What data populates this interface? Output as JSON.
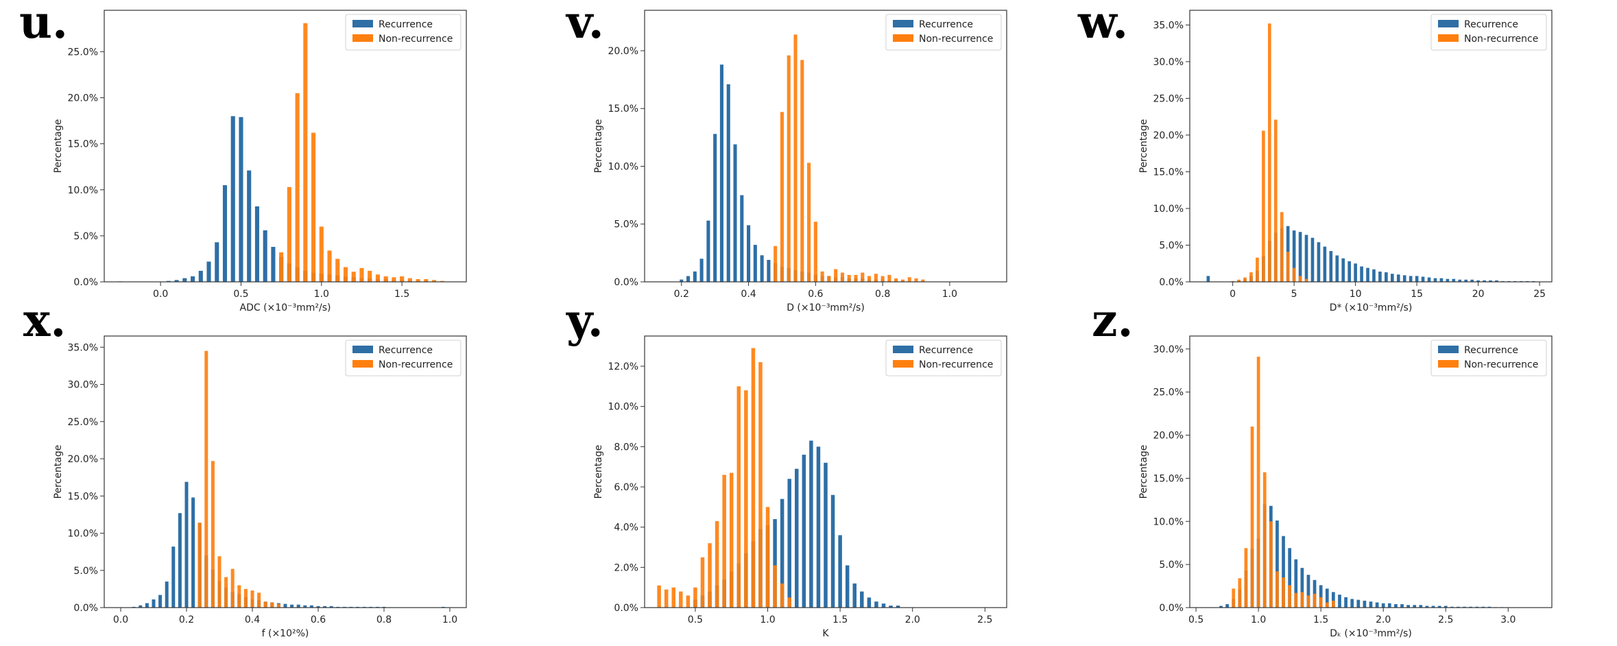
{
  "colors": {
    "recurrence": "#2e6fa6",
    "non_recurrence": "#ff7f0e",
    "overlap": "#6e6e6e"
  },
  "chart_data": [
    {
      "type": "bar",
      "letter": "u.",
      "xlabel": "ADC (×10⁻³mm²/s)",
      "ylabel": "Percentage",
      "xlim": [
        -0.35,
        1.9
      ],
      "ylim": [
        0,
        29.5
      ],
      "xticks": [
        0.0,
        0.5,
        1.0,
        1.5
      ],
      "xtick_labels": [
        "0.0",
        "0.5",
        "1.0",
        "1.5"
      ],
      "yticks": [
        0,
        5,
        10,
        15,
        20,
        25
      ],
      "ytick_labels": [
        "0.0%",
        "5.0%",
        "10.0%",
        "15.0%",
        "20.0%",
        "25.0%"
      ],
      "legend": [
        "Recurrence",
        "Non-recurrence"
      ],
      "legend_position": "top-right",
      "bin_width": 0.05,
      "series": [
        {
          "name": "Recurrence",
          "x": [
            -0.25,
            0.05,
            0.1,
            0.15,
            0.2,
            0.25,
            0.3,
            0.35,
            0.4,
            0.45,
            0.5,
            0.55,
            0.6,
            0.65,
            0.7,
            0.75,
            0.8,
            0.85,
            0.9,
            0.95,
            1.0,
            1.05,
            1.1,
            1.15,
            1.2,
            1.25,
            1.3,
            1.35,
            1.4,
            1.45,
            1.5,
            1.55,
            1.6,
            1.65,
            1.7,
            1.75
          ],
          "values": [
            0.05,
            0.1,
            0.2,
            0.4,
            0.6,
            1.2,
            2.2,
            4.3,
            10.5,
            18.0,
            17.9,
            12.1,
            8.2,
            5.6,
            3.8,
            2.7,
            2.0,
            1.6,
            1.2,
            1.0,
            0.9,
            0.8,
            0.7,
            0.6,
            0.5,
            0.4,
            0.4,
            0.3,
            0.3,
            0.2,
            0.2,
            0.15,
            0.1,
            0.1,
            0.05,
            0.05
          ]
        },
        {
          "name": "Non-recurrence",
          "x": [
            0.75,
            0.8,
            0.85,
            0.9,
            0.95,
            1.0,
            1.05,
            1.1,
            1.15,
            1.2,
            1.25,
            1.3,
            1.35,
            1.4,
            1.45,
            1.5,
            1.55,
            1.6,
            1.65,
            1.7,
            1.75
          ],
          "values": [
            3.2,
            10.3,
            20.5,
            28.1,
            16.2,
            6.0,
            3.4,
            2.5,
            1.6,
            1.1,
            1.5,
            1.2,
            0.8,
            0.6,
            0.5,
            0.6,
            0.4,
            0.3,
            0.3,
            0.2,
            0.1
          ]
        }
      ]
    },
    {
      "type": "bar",
      "letter": "v.",
      "xlabel": "D (×10⁻³mm²/s)",
      "ylabel": "Percentage",
      "xlim": [
        0.09,
        1.17
      ],
      "ylim": [
        0,
        23.5
      ],
      "xticks": [
        0.2,
        0.4,
        0.6,
        0.8,
        1.0
      ],
      "xtick_labels": [
        "0.2",
        "0.4",
        "0.6",
        "0.8",
        "1.0"
      ],
      "yticks": [
        0,
        5,
        10,
        15,
        20
      ],
      "ytick_labels": [
        "0.0%",
        "5.0%",
        "10.0%",
        "15.0%",
        "20.0%"
      ],
      "legend": [
        "Recurrence",
        "Non-recurrence"
      ],
      "legend_position": "top-right",
      "bin_width": 0.02,
      "series": [
        {
          "name": "Recurrence",
          "x": [
            0.2,
            0.22,
            0.24,
            0.26,
            0.28,
            0.3,
            0.32,
            0.34,
            0.36,
            0.38,
            0.4,
            0.42,
            0.44,
            0.46,
            0.48,
            0.5,
            0.52,
            0.54,
            0.56,
            0.58,
            0.6,
            0.62,
            0.64,
            0.66,
            0.68,
            0.7,
            0.72,
            0.74,
            0.76,
            0.78,
            0.8,
            0.82,
            0.84,
            0.86
          ],
          "values": [
            0.2,
            0.5,
            0.9,
            2.0,
            5.3,
            12.8,
            18.8,
            17.1,
            11.9,
            7.5,
            4.9,
            3.2,
            2.3,
            1.9,
            1.6,
            1.3,
            1.2,
            1.0,
            0.9,
            0.8,
            0.6,
            0.5,
            0.5,
            0.4,
            0.4,
            0.3,
            0.3,
            0.3,
            0.2,
            0.2,
            0.2,
            0.1,
            0.1,
            0.1
          ]
        },
        {
          "name": "Non-recurrence",
          "x": [
            0.48,
            0.5,
            0.52,
            0.54,
            0.56,
            0.58,
            0.6,
            0.62,
            0.64,
            0.66,
            0.68,
            0.7,
            0.72,
            0.74,
            0.76,
            0.78,
            0.8,
            0.82,
            0.84,
            0.86,
            0.88,
            0.9,
            0.92
          ],
          "values": [
            3.1,
            14.7,
            19.6,
            21.4,
            19.2,
            10.3,
            5.2,
            0.9,
            0.5,
            1.1,
            0.8,
            0.6,
            0.6,
            0.8,
            0.5,
            0.7,
            0.5,
            0.6,
            0.3,
            0.2,
            0.4,
            0.3,
            0.2
          ]
        }
      ]
    },
    {
      "type": "bar",
      "letter": "w.",
      "xlabel": "D* (×10⁻³mm²/s)",
      "ylabel": "Percentage",
      "xlim": [
        -3.5,
        26.0
      ],
      "ylim": [
        0,
        37.0
      ],
      "xticks": [
        0,
        5,
        10,
        15,
        20,
        25
      ],
      "xtick_labels": [
        "0",
        "5",
        "10",
        "15",
        "20",
        "25"
      ],
      "yticks": [
        0,
        5,
        10,
        15,
        20,
        25,
        30,
        35
      ],
      "ytick_labels": [
        "0.0%",
        "5.0%",
        "10.0%",
        "15.0%",
        "20.0%",
        "25.0%",
        "30.0%",
        "35.0%"
      ],
      "legend": [
        "Recurrence",
        "Non-recurrence"
      ],
      "legend_position": "top-right",
      "bin_width": 0.5,
      "series": [
        {
          "name": "Recurrence",
          "x": [
            -2.0,
            0.0,
            0.5,
            1.0,
            1.5,
            2.0,
            2.5,
            3.0,
            3.5,
            4.0,
            4.5,
            5.0,
            5.5,
            6.0,
            6.5,
            7.0,
            7.5,
            8.0,
            8.5,
            9.0,
            9.5,
            10.0,
            10.5,
            11.0,
            11.5,
            12.0,
            12.5,
            13.0,
            13.5,
            14.0,
            14.5,
            15.0,
            15.5,
            16.0,
            16.5,
            17.0,
            17.5,
            18.0,
            18.5,
            19.0,
            19.5,
            20.0,
            20.5,
            21.0,
            21.5,
            22.0,
            22.5,
            23.0,
            23.5,
            24.0,
            24.5
          ],
          "values": [
            0.8,
            0.1,
            0.2,
            0.4,
            0.8,
            1.5,
            3.5,
            5.6,
            6.7,
            7.3,
            7.6,
            7.0,
            6.8,
            6.4,
            6.0,
            5.4,
            4.8,
            4.2,
            3.6,
            3.2,
            2.8,
            2.5,
            2.1,
            1.9,
            1.7,
            1.4,
            1.3,
            1.1,
            1.0,
            0.9,
            0.8,
            0.8,
            0.7,
            0.6,
            0.5,
            0.5,
            0.4,
            0.4,
            0.3,
            0.3,
            0.3,
            0.2,
            0.2,
            0.2,
            0.2,
            0.1,
            0.1,
            0.1,
            0.1,
            0.1,
            0.1
          ]
        },
        {
          "name": "Non-recurrence",
          "x": [
            0.0,
            0.5,
            1.0,
            1.5,
            2.0,
            2.5,
            3.0,
            3.5,
            4.0,
            4.5,
            5.0,
            5.5,
            6.0
          ],
          "values": [
            0.1,
            0.3,
            0.6,
            1.3,
            3.3,
            20.6,
            35.2,
            22.1,
            9.5,
            4.1,
            1.9,
            0.8,
            0.4
          ]
        }
      ]
    },
    {
      "type": "bar",
      "letter": "x.",
      "xlabel": "f (×10²%)",
      "ylabel": "Percentage",
      "xlim": [
        -0.05,
        1.05
      ],
      "ylim": [
        0,
        36.5
      ],
      "xticks": [
        0.0,
        0.2,
        0.4,
        0.6,
        0.8,
        1.0
      ],
      "xtick_labels": [
        "0.0",
        "0.2",
        "0.4",
        "0.6",
        "0.8",
        "1.0"
      ],
      "yticks": [
        0,
        5,
        10,
        15,
        20,
        25,
        30,
        35
      ],
      "ytick_labels": [
        "0.0%",
        "5.0%",
        "10.0%",
        "15.0%",
        "20.0%",
        "25.0%",
        "30.0%",
        "35.0%"
      ],
      "legend": [
        "Recurrence",
        "Non-recurrence"
      ],
      "legend_position": "top-right",
      "bin_width": 0.02,
      "series": [
        {
          "name": "Recurrence",
          "x": [
            0.04,
            0.06,
            0.08,
            0.1,
            0.12,
            0.14,
            0.16,
            0.18,
            0.2,
            0.22,
            0.24,
            0.26,
            0.28,
            0.3,
            0.32,
            0.34,
            0.36,
            0.38,
            0.4,
            0.42,
            0.44,
            0.46,
            0.48,
            0.5,
            0.52,
            0.54,
            0.56,
            0.58,
            0.6,
            0.62,
            0.64,
            0.66,
            0.68,
            0.7,
            0.72,
            0.74,
            0.76,
            0.78,
            0.8,
            0.82,
            0.84,
            0.86,
            0.88,
            0.9,
            0.92,
            0.94,
            0.96,
            0.98
          ],
          "values": [
            0.1,
            0.3,
            0.6,
            1.1,
            1.7,
            3.5,
            8.2,
            12.7,
            16.9,
            14.8,
            11.4,
            7.0,
            5.1,
            3.6,
            2.7,
            2.1,
            1.8,
            1.4,
            1.1,
            1.0,
            0.8,
            0.7,
            0.6,
            0.5,
            0.4,
            0.4,
            0.3,
            0.3,
            0.2,
            0.2,
            0.2,
            0.1,
            0.1,
            0.1,
            0.1,
            0.1,
            0.1,
            0.1,
            0.1,
            0.05,
            0.05,
            0.05,
            0.05,
            0.05,
            0.05,
            0.05,
            0.05,
            0.1
          ]
        },
        {
          "name": "Non-recurrence",
          "x": [
            0.24,
            0.26,
            0.28,
            0.3,
            0.32,
            0.34,
            0.36,
            0.38,
            0.4,
            0.42,
            0.44,
            0.46,
            0.48
          ],
          "values": [
            11.4,
            34.5,
            19.7,
            6.9,
            4.1,
            5.2,
            3.0,
            2.5,
            2.3,
            2.0,
            0.8,
            0.7,
            0.5
          ]
        }
      ]
    },
    {
      "type": "bar",
      "letter": "y.",
      "xlabel": "K",
      "ylabel": "Percentage",
      "xlim": [
        0.15,
        2.65
      ],
      "ylim": [
        0,
        13.5
      ],
      "xticks": [
        0.5,
        1.0,
        1.5,
        2.0,
        2.5
      ],
      "xtick_labels": [
        "0.5",
        "1.0",
        "1.5",
        "2.0",
        "2.5"
      ],
      "yticks": [
        0,
        2,
        4,
        6,
        8,
        10,
        12
      ],
      "ytick_labels": [
        "0.0%",
        "2.0%",
        "4.0%",
        "6.0%",
        "8.0%",
        "10.0%",
        "12.0%"
      ],
      "legend": [
        "Recurrence",
        "Non-recurrence"
      ],
      "legend_position": "top-right",
      "bin_width": 0.05,
      "series": [
        {
          "name": "Recurrence",
          "x": [
            0.5,
            0.55,
            0.6,
            0.65,
            0.7,
            0.75,
            0.8,
            0.85,
            0.9,
            0.95,
            1.0,
            1.05,
            1.1,
            1.15,
            1.2,
            1.25,
            1.3,
            1.35,
            1.4,
            1.45,
            1.5,
            1.55,
            1.6,
            1.65,
            1.7,
            1.75,
            1.8,
            1.85,
            1.9
          ],
          "values": [
            0.4,
            0.6,
            0.8,
            1.1,
            1.4,
            1.8,
            2.2,
            2.7,
            3.3,
            3.9,
            4.1,
            4.4,
            5.4,
            6.4,
            6.9,
            7.6,
            8.3,
            8.0,
            7.2,
            5.6,
            3.6,
            2.1,
            1.2,
            0.8,
            0.5,
            0.3,
            0.2,
            0.1,
            0.1
          ]
        },
        {
          "name": "Non-recurrence",
          "x": [
            0.25,
            0.3,
            0.35,
            0.4,
            0.45,
            0.5,
            0.55,
            0.6,
            0.65,
            0.7,
            0.75,
            0.8,
            0.85,
            0.9,
            0.95,
            1.0,
            1.05,
            1.1,
            1.15
          ],
          "values": [
            1.1,
            0.9,
            1.0,
            0.8,
            0.6,
            1.0,
            2.5,
            3.2,
            4.3,
            6.6,
            6.7,
            11.0,
            10.8,
            12.9,
            12.2,
            5.0,
            2.1,
            1.2,
            0.5
          ]
        }
      ]
    },
    {
      "type": "bar",
      "letter": "z.",
      "xlabel": "Dₖ (×10⁻³mm²/s)",
      "ylabel": "Percentage",
      "xlim": [
        0.45,
        3.35
      ],
      "ylim": [
        0,
        31.5
      ],
      "xticks": [
        0.5,
        1.0,
        1.5,
        2.0,
        2.5,
        3.0
      ],
      "xtick_labels": [
        "0.5",
        "1.0",
        "1.5",
        "2.0",
        "2.5",
        "3.0"
      ],
      "yticks": [
        0,
        5,
        10,
        15,
        20,
        25,
        30
      ],
      "ytick_labels": [
        "0.0%",
        "5.0%",
        "10.0%",
        "15.0%",
        "20.0%",
        "25.0%",
        "30.0%"
      ],
      "legend": [
        "Recurrence",
        "Non-recurrence"
      ],
      "legend_position": "top-right",
      "bin_width": 0.05,
      "series": [
        {
          "name": "Recurrence",
          "x": [
            0.7,
            0.75,
            0.8,
            0.85,
            0.9,
            0.95,
            1.0,
            1.05,
            1.1,
            1.15,
            1.2,
            1.25,
            1.3,
            1.35,
            1.4,
            1.45,
            1.5,
            1.55,
            1.6,
            1.65,
            1.7,
            1.75,
            1.8,
            1.85,
            1.9,
            1.95,
            2.0,
            2.05,
            2.1,
            2.15,
            2.2,
            2.25,
            2.3,
            2.35,
            2.4,
            2.45,
            2.5,
            2.55,
            2.6,
            2.65,
            2.7,
            2.75,
            2.8,
            2.85,
            2.9,
            2.95
          ],
          "values": [
            0.2,
            0.4,
            1.0,
            2.1,
            4.3,
            6.8,
            8.0,
            12.0,
            11.8,
            10.1,
            8.3,
            6.9,
            5.6,
            4.6,
            3.8,
            3.2,
            2.6,
            2.2,
            1.8,
            1.5,
            1.2,
            1.0,
            0.9,
            0.8,
            0.7,
            0.6,
            0.5,
            0.5,
            0.4,
            0.4,
            0.3,
            0.3,
            0.3,
            0.2,
            0.2,
            0.2,
            0.2,
            0.1,
            0.1,
            0.1,
            0.1,
            0.1,
            0.1,
            0.1,
            0.05,
            0.05
          ]
        },
        {
          "name": "Non-recurrence",
          "x": [
            0.8,
            0.85,
            0.9,
            0.95,
            1.0,
            1.05,
            1.1,
            1.15,
            1.2,
            1.25,
            1.3,
            1.35,
            1.4,
            1.45,
            1.5,
            1.55,
            1.6
          ],
          "values": [
            2.2,
            3.4,
            6.9,
            21.0,
            29.1,
            15.7,
            10.0,
            4.2,
            3.5,
            2.6,
            1.7,
            1.8,
            1.4,
            1.6,
            1.2,
            0.6,
            0.8
          ]
        }
      ]
    }
  ]
}
